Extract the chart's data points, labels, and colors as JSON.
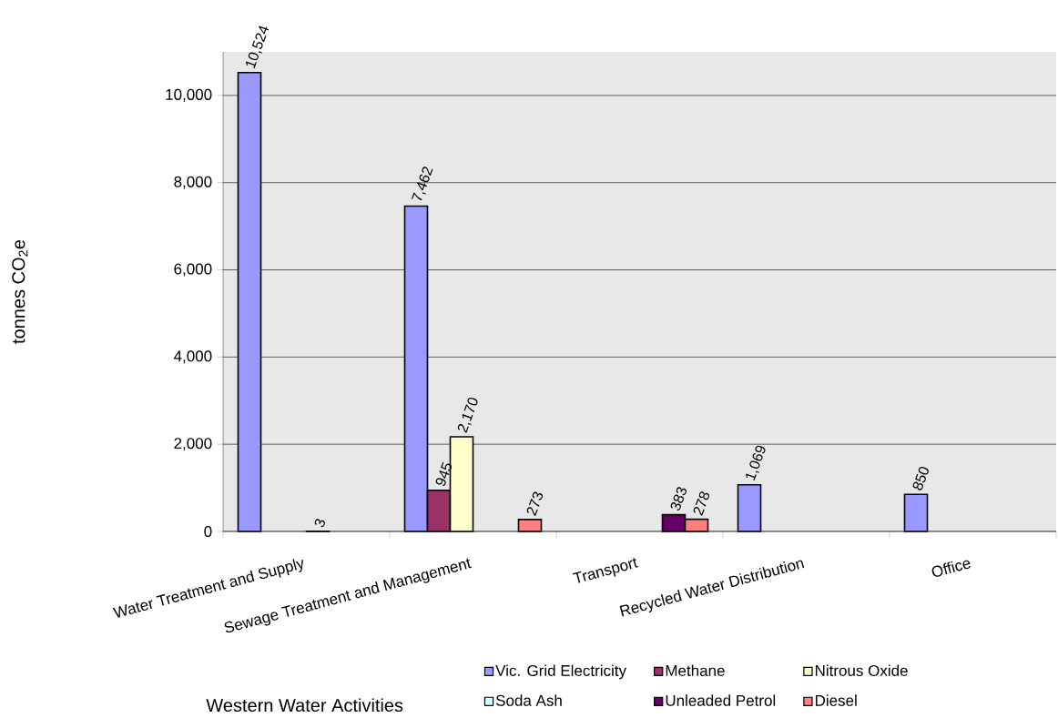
{
  "chart_data": {
    "type": "bar",
    "xlabel": "Western Water Activities",
    "ylabel": "tonnes CO$_{2}$e",
    "categories": [
      "Water Treatment and Supply",
      "Sewage Treatment and Management",
      "Transport",
      "Recycled Water Distribution",
      "Office"
    ],
    "series": [
      {
        "name": "Vic. Grid Electricity",
        "color": "#9999ff",
        "values": [
          10524,
          7462,
          null,
          1069,
          850
        ],
        "value_labels": [
          "10,524",
          "7,462",
          null,
          "1,069",
          "850"
        ]
      },
      {
        "name": "Methane",
        "color": "#993366",
        "values": [
          null,
          945,
          null,
          null,
          null
        ],
        "value_labels": [
          null,
          "945",
          null,
          null,
          null
        ]
      },
      {
        "name": "Nitrous Oxide",
        "color": "#ffffcc",
        "values": [
          null,
          2170,
          null,
          null,
          null
        ],
        "value_labels": [
          null,
          "2,170",
          null,
          null,
          null
        ]
      },
      {
        "name": "Soda Ash",
        "color": "#ccffff",
        "values": [
          3,
          null,
          null,
          null,
          null
        ],
        "value_labels": [
          "3",
          null,
          null,
          null,
          null
        ]
      },
      {
        "name": "Unleaded Petrol",
        "color": "#660066",
        "values": [
          null,
          null,
          383,
          null,
          null
        ],
        "value_labels": [
          null,
          null,
          "383",
          null,
          null
        ]
      },
      {
        "name": "Diesel",
        "color": "#ff8080",
        "values": [
          null,
          273,
          278,
          null,
          null
        ],
        "value_labels": [
          null,
          "273",
          "278",
          null,
          null
        ]
      }
    ],
    "ylim": [
      0,
      11000
    ],
    "yticks": [
      {
        "value": 0,
        "label": "0"
      },
      {
        "value": 2000,
        "label": "2,000"
      },
      {
        "value": 4000,
        "label": "4,000"
      },
      {
        "value": 6000,
        "label": "6,000"
      },
      {
        "value": 8000,
        "label": "8,000"
      },
      {
        "value": 10000,
        "label": "10,000"
      }
    ],
    "grid": "y",
    "legend": "bottom right"
  }
}
